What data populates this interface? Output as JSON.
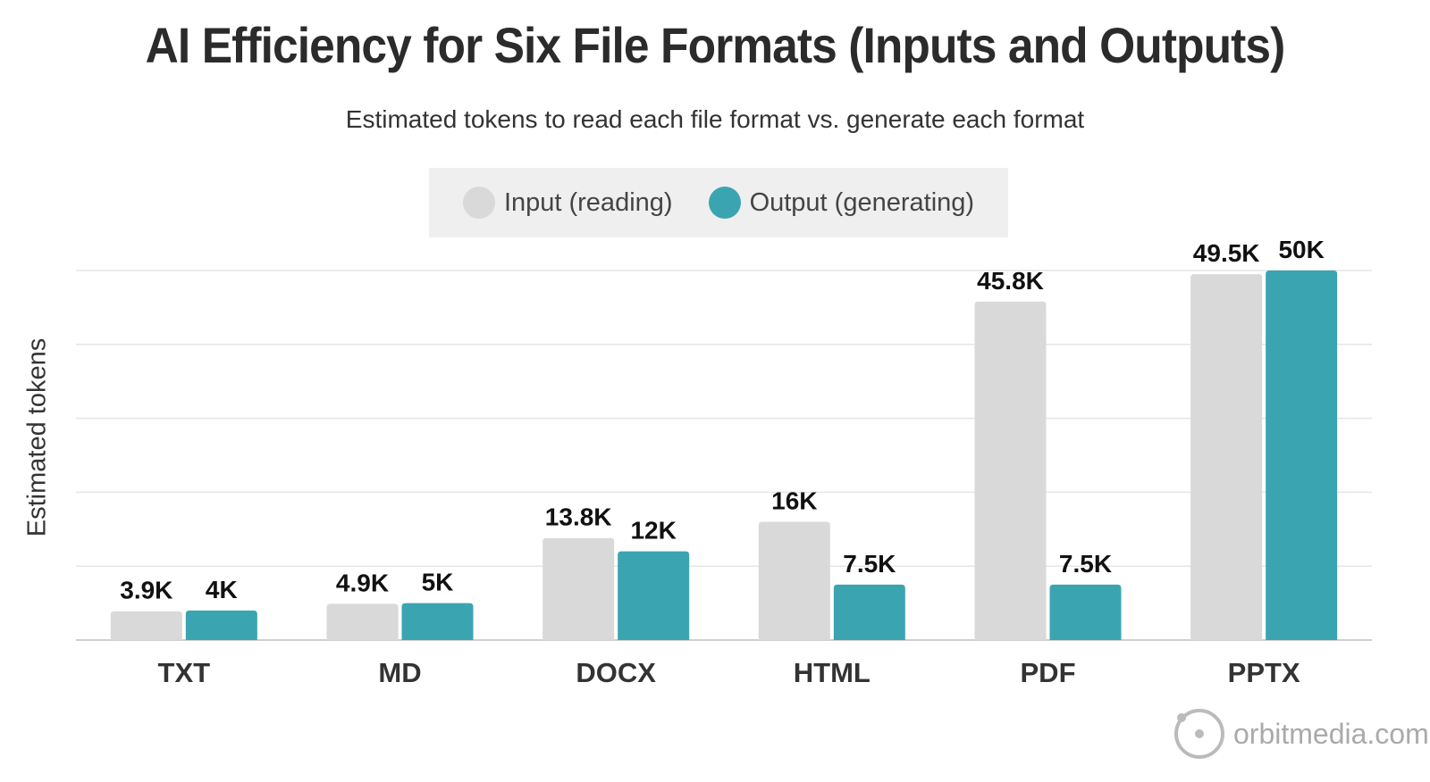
{
  "chart_data": {
    "type": "bar",
    "title": "AI Efficiency for Six File Formats (Inputs and Outputs)",
    "subtitle": "Estimated tokens to read each file format vs. generate each format",
    "ylabel": "Estimated tokens",
    "categories": [
      "TXT",
      "MD",
      "DOCX",
      "HTML",
      "PDF",
      "PPTX"
    ],
    "series": [
      {
        "name": "Input (reading)",
        "color": "#d9d9d9",
        "values": [
          3900,
          4900,
          13800,
          16000,
          45800,
          49500
        ],
        "labels": [
          "3.9K",
          "4.9K",
          "13.8K",
          "16K",
          "45.8K",
          "49.5K"
        ]
      },
      {
        "name": "Output (generating)",
        "color": "#3aa5b1",
        "values": [
          4000,
          5000,
          12000,
          7500,
          7500,
          50000
        ],
        "labels": [
          "4K",
          "5K",
          "12K",
          "7.5K",
          "7.5K",
          "50K"
        ]
      }
    ],
    "ylim": [
      0,
      50000
    ],
    "grid": true,
    "legend_position": "top-center"
  },
  "branding": {
    "text": "orbitmedia.com",
    "icon": "orbit-logo-icon"
  }
}
